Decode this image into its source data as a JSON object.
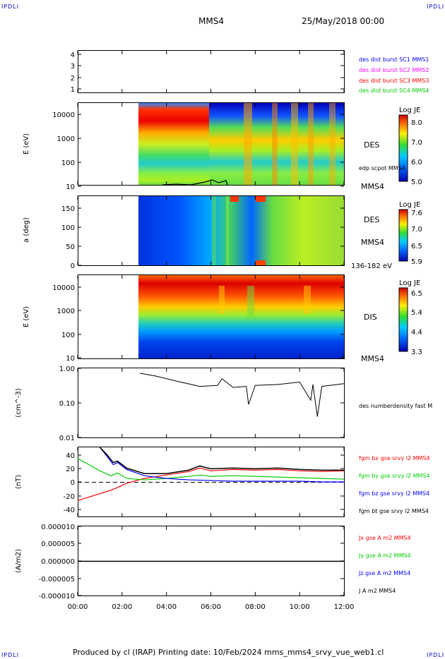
{
  "corner_label": "IPDLI",
  "header": {
    "spacecraft": "MMS4",
    "date": "25/May/2018 00:00"
  },
  "footer": {
    "text": "Produced by cl (IRAP)   Printing date: 10/Feb/2024   mms_mms4_srvy_vue_web1.cl"
  },
  "chart_data": [
    {
      "type": "line",
      "panel": "spacecraft-indicator",
      "yticks": [
        "4",
        "3",
        "2",
        "1"
      ],
      "legend": [
        {
          "text": "des dist burst SC1 MMS1",
          "color": "#0000ff"
        },
        {
          "text": "des dist burst SC2 MMS2",
          "color": "#ff00ff"
        },
        {
          "text": "des dist burst SC3 MMS3",
          "color": "#ff0000"
        },
        {
          "text": "des dist burst SC4 MMS4",
          "color": "#00cc00"
        }
      ]
    },
    {
      "type": "heatmap",
      "panel": "DES energy spectrogram",
      "ylabel": "E (eV)",
      "yscale": "log",
      "yticks": [
        "10000",
        "1000",
        "100",
        "10"
      ],
      "label": "DES",
      "sub_label": "edp scpot MMS4",
      "bottom_label": "MMS4",
      "colorbar": {
        "title": "Log JE",
        "ticks": [
          "8.0",
          "7.0",
          "6.0",
          "5.0"
        ]
      },
      "data_start_hour": 2.75
    },
    {
      "type": "heatmap",
      "panel": "DES pitch angle",
      "ylabel": "a (deg)",
      "yticks": [
        "150",
        "100",
        "50",
        "0"
      ],
      "label": "DES",
      "sub_label": "MMS4",
      "bottom_label": "136-182 eV",
      "colorbar": {
        "title": "Log JE",
        "ticks": [
          "7.6",
          "7.0",
          "6.5",
          "5.9"
        ]
      },
      "data_start_hour": 2.75
    },
    {
      "type": "heatmap",
      "panel": "DIS energy spectrogram",
      "ylabel": "E (eV)",
      "yscale": "log",
      "yticks": [
        "10000",
        "1000",
        "100",
        "10"
      ],
      "label": "DIS",
      "bottom_label": "MMS4",
      "colorbar": {
        "title": "Log JE",
        "ticks": [
          "6.5",
          "5.4",
          "4.4",
          "3.3"
        ]
      },
      "data_start_hour": 2.75
    },
    {
      "type": "line",
      "panel": "density",
      "ylabel": "(cm^-3)",
      "yscale": "log",
      "yticks": [
        "1.00",
        "0.10",
        "0.01"
      ],
      "ylim": [
        0.01,
        1.0
      ],
      "legend": [
        {
          "text": "des numberdensity fast M",
          "color": "#000000"
        }
      ],
      "series": [
        {
          "x": [
            2.8,
            3.5,
            4.5,
            5.5,
            6.3,
            6.5,
            7.0,
            7.6,
            7.7,
            8.0,
            9.0,
            10.0,
            10.5,
            10.6,
            10.8,
            11.0,
            12.0
          ],
          "y": [
            0.72,
            0.6,
            0.42,
            0.3,
            0.32,
            0.5,
            0.28,
            0.3,
            0.09,
            0.32,
            0.34,
            0.4,
            0.12,
            0.34,
            0.04,
            0.3,
            0.36
          ]
        }
      ]
    },
    {
      "type": "line",
      "panel": "magnetic field",
      "ylabel": "(nT)",
      "yticks": [
        "40",
        "20",
        "0",
        "-20",
        "-40"
      ],
      "ylim": [
        -50,
        50
      ],
      "legend": [
        {
          "text": "fgm bx gse srvy l2 MMS4",
          "color": "#ff0000"
        },
        {
          "text": "fgm by gse srvy l2 MMS4",
          "color": "#00cc00"
        },
        {
          "text": "fgm bz gse srvy l2 MMS4",
          "color": "#0000ff"
        },
        {
          "text": "fgm bt gse srvy l2 MMS4",
          "color": "#000000"
        }
      ],
      "series": [
        {
          "name": "fgm bx gse srvy l2 MMS4",
          "color": "#ff0000",
          "x": [
            0,
            0.5,
            1.0,
            1.5,
            1.8,
            2.2,
            3,
            4,
            5,
            5.5,
            6,
            7,
            8,
            9,
            10,
            11,
            12
          ],
          "y": [
            -27,
            -22,
            -17,
            -12,
            -8,
            -2,
            5,
            10,
            15,
            20,
            16,
            18,
            17,
            18,
            16,
            15,
            16
          ]
        },
        {
          "name": "fgm by gse srvy l2 MMS4",
          "color": "#00cc00",
          "x": [
            0,
            0.5,
            1.0,
            1.5,
            1.8,
            2.2,
            3,
            4,
            5,
            5.5,
            6,
            7,
            8,
            9,
            10,
            11,
            12
          ],
          "y": [
            34,
            25,
            16,
            9,
            13,
            5,
            3,
            5,
            8,
            10,
            8,
            9,
            8,
            7,
            6,
            5,
            4
          ]
        },
        {
          "name": "fgm bz gse srvy l2 MMS4",
          "color": "#0000ff",
          "x": [
            1.0,
            1.3,
            1.6,
            1.8,
            2.2,
            3,
            4,
            5,
            6,
            7,
            8,
            9,
            10,
            11,
            12
          ],
          "y": [
            50,
            38,
            25,
            28,
            18,
            9,
            5,
            3,
            2,
            1,
            1,
            1,
            1,
            0,
            0
          ]
        },
        {
          "name": "fgm bt gse srvy l2 MMS4",
          "color": "#000000",
          "x": [
            1.0,
            1.3,
            1.6,
            1.8,
            2.2,
            3,
            4,
            5,
            5.5,
            6,
            7,
            8,
            9,
            10,
            11,
            12
          ],
          "y": [
            50,
            40,
            28,
            30,
            20,
            12,
            12,
            17,
            23,
            19,
            20,
            19,
            20,
            18,
            17,
            17
          ]
        }
      ]
    },
    {
      "type": "line",
      "panel": "current density",
      "ylabel": "(A/m2)",
      "yticks": [
        "0.000010",
        "0.000005",
        "0.000000",
        "-0.000005",
        "-0.000010"
      ],
      "ylim": [
        -1e-05,
        1e-05
      ],
      "legend": [
        {
          "text": "Jx gse A m2 MMS4",
          "color": "#ff0000"
        },
        {
          "text": "Jy gse A m2 MMS4",
          "color": "#00cc00"
        },
        {
          "text": "Jz gse A m2 MMS4",
          "color": "#0000ff"
        },
        {
          "text": "J A m2 MMS4",
          "color": "#000000"
        }
      ],
      "series": [
        {
          "name": "J A m2 MMS4",
          "x": [
            0,
            12
          ],
          "y": [
            0,
            0
          ]
        }
      ]
    }
  ],
  "x_axis": {
    "ticks": [
      "00:00",
      "02:00",
      "04:00",
      "06:00",
      "08:00",
      "10:00",
      "12:00"
    ],
    "xlim_hours": [
      0,
      12
    ]
  }
}
